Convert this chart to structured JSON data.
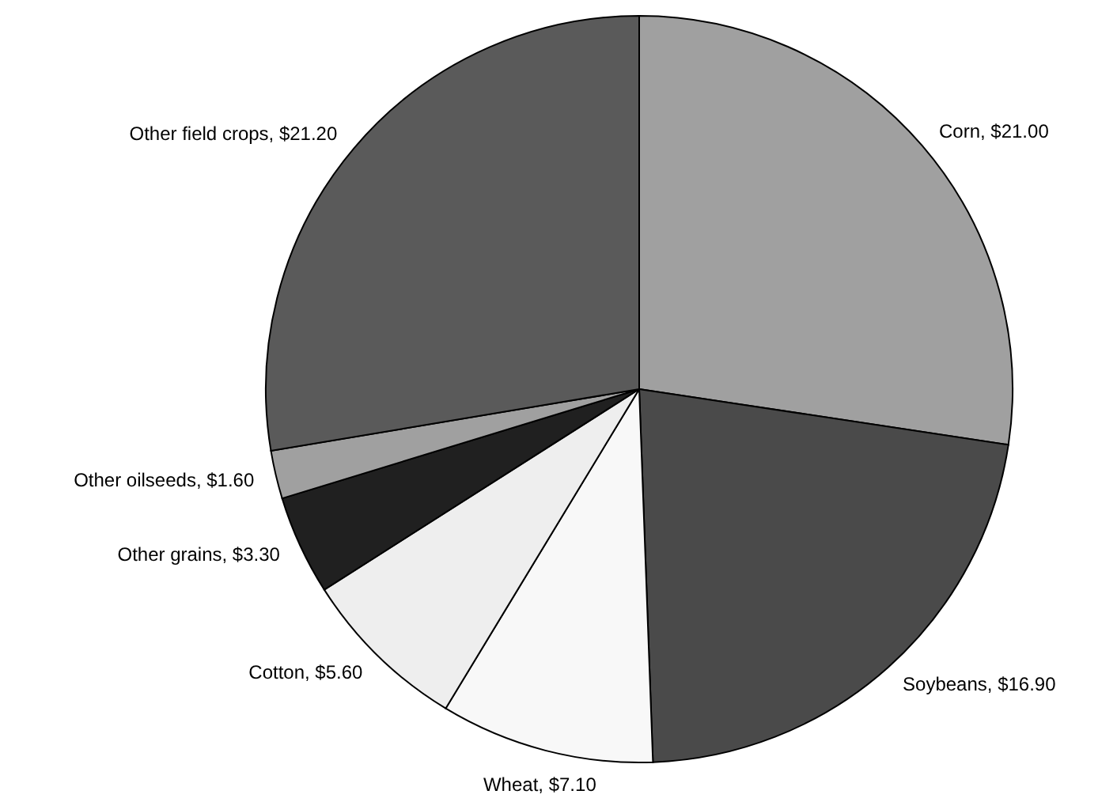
{
  "chart_data": {
    "type": "pie",
    "categories": [
      "Corn",
      "Soybeans",
      "Wheat",
      "Cotton",
      "Other grains",
      "Other oilseeds",
      "Other field crops"
    ],
    "values": [
      21.0,
      16.9,
      7.1,
      5.6,
      3.3,
      1.6,
      21.2
    ],
    "value_labels": [
      "$21.00",
      "$16.90",
      "$7.10",
      "$5.60",
      "$3.30",
      "$1.60",
      "$21.20"
    ],
    "colors": [
      "#a0a0a0",
      "#4a4a4a",
      "#f8f8f8",
      "#eeeeee",
      "#202020",
      "#a0a0a0",
      "#5a5a5a"
    ]
  }
}
